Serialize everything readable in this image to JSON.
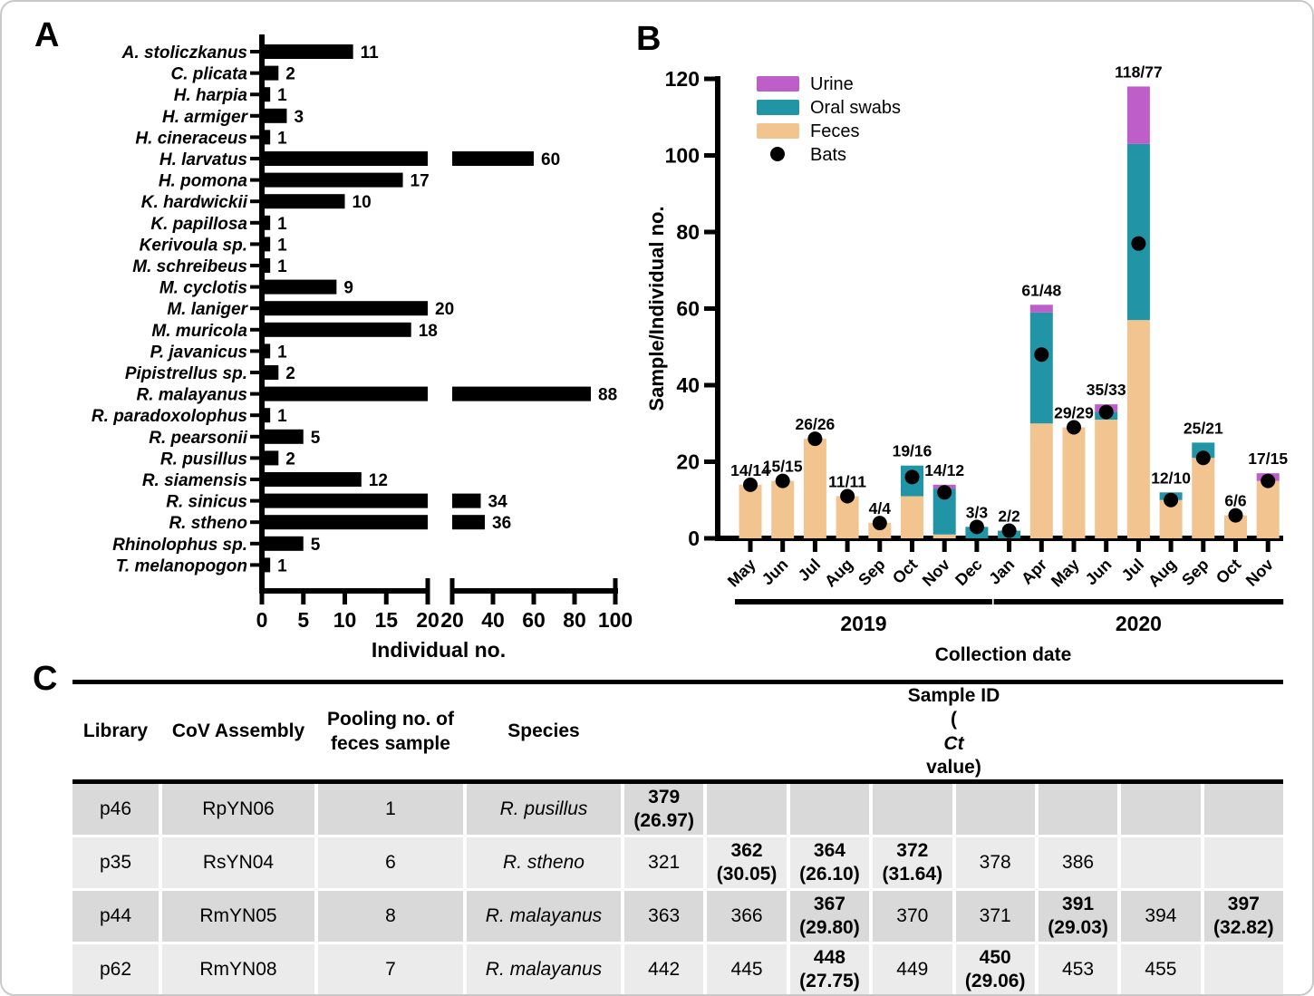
{
  "panels": {
    "a": "A",
    "b": "B",
    "c": "C"
  },
  "colors": {
    "bar": "#000000",
    "feces": "#f1c490",
    "oral_swabs": "#2194a6",
    "urine": "#bd5ec9",
    "bats": "#000000",
    "row_dark": "#d9d9d9",
    "row_light": "#ebebeb",
    "frame": "#c9c9c9"
  },
  "chart_data": [
    {
      "id": "panel-a",
      "type": "bar",
      "orientation": "horizontal",
      "title": "",
      "xlabel": "Individual no.",
      "categories": [
        "A. stoliczkanus",
        "C. plicata",
        "H. harpia",
        "H. armiger",
        "H. cineraceus",
        "H. larvatus",
        "H. pomona",
        "K. hardwickii",
        "K. papillosa",
        "Kerivoula sp.",
        "M. schreibeus",
        "M. cyclotis",
        "M. laniger",
        "M. muricola",
        "P. javanicus",
        "Pipistrellus sp.",
        "R. malayanus",
        "R. paradoxolophus",
        "R. pearsonii",
        "R. pusillus",
        "R. siamensis",
        "R. sinicus",
        "R. stheno",
        "Rhinolophus sp.",
        "T. melanopogon"
      ],
      "values": [
        11,
        2,
        1,
        3,
        1,
        60,
        17,
        10,
        1,
        1,
        1,
        9,
        20,
        18,
        1,
        2,
        88,
        1,
        5,
        2,
        12,
        34,
        36,
        5,
        1
      ],
      "axis_break": {
        "left_range": [
          0,
          20
        ],
        "right_range": [
          20,
          100
        ],
        "left_ticks": [
          0,
          5,
          10,
          15,
          20
        ],
        "right_ticks": [
          20,
          40,
          60,
          80,
          100
        ]
      },
      "bar_color": "#000000"
    },
    {
      "id": "panel-b",
      "type": "stacked-bar",
      "title": "",
      "xlabel": "Collection date",
      "ylabel": "Sample/Individual no.",
      "ylim": [
        0,
        120
      ],
      "yticks": [
        0,
        20,
        40,
        60,
        80,
        100,
        120
      ],
      "categories": [
        "May",
        "Jun",
        "Jul",
        "Aug",
        "Sep",
        "Oct",
        "Nov",
        "Dec",
        "Jan",
        "Apr",
        "May",
        "Jun",
        "Jul",
        "Aug",
        "Sep",
        "Oct",
        "Nov"
      ],
      "year_groups": [
        {
          "label": "2019",
          "from": 0,
          "to": 7
        },
        {
          "label": "2020",
          "from": 8,
          "to": 16
        }
      ],
      "series": [
        {
          "name": "Feces",
          "color": "#f1c490",
          "values": [
            14,
            15,
            26,
            11,
            4,
            11,
            1,
            0,
            0,
            30,
            29,
            31,
            57,
            10,
            21,
            6,
            15
          ]
        },
        {
          "name": "Oral swabs",
          "color": "#2194a6",
          "values": [
            0,
            0,
            0,
            0,
            0,
            8,
            12,
            3,
            2,
            29,
            0,
            2,
            46,
            2,
            4,
            0,
            0
          ]
        },
        {
          "name": "Urine",
          "color": "#bd5ec9",
          "values": [
            0,
            0,
            0,
            0,
            0,
            0,
            1,
            0,
            0,
            2,
            0,
            2,
            15,
            0,
            0,
            0,
            2
          ]
        }
      ],
      "points": {
        "name": "Bats",
        "color": "#000000",
        "values": [
          14,
          15,
          26,
          11,
          4,
          16,
          12,
          3,
          2,
          48,
          29,
          33,
          77,
          10,
          21,
          6,
          15
        ]
      },
      "bar_labels": [
        "14/14",
        "15/15",
        "26/26",
        "11/11",
        "4/4",
        "19/16",
        "14/12",
        "3/3",
        "2/2",
        "61/48",
        "29/29",
        "35/33",
        "118/77",
        "12/10",
        "25/21",
        "6/6",
        "17/15"
      ],
      "legend_order": [
        "Urine",
        "Oral swabs",
        "Feces",
        "Bats"
      ],
      "legend_position": "top-left-inside"
    },
    {
      "id": "panel-c",
      "type": "table",
      "headers": {
        "library": "Library",
        "assembly": "CoV Assembly",
        "pooling_line1": "Pooling no. of",
        "pooling_line2": "feces sample",
        "species": "Species",
        "sample_line1": "Sample ID",
        "sample_line2_pre": "(",
        "sample_line2_italic": "Ct",
        "sample_line2_post": " value)"
      },
      "rows": [
        {
          "library": "p46",
          "assembly": "RpYN06",
          "pooling": "1",
          "species": "R. pusillus",
          "samples": [
            "379|(26.97)",
            "",
            "",
            "",
            "",
            "",
            "",
            ""
          ]
        },
        {
          "library": "p35",
          "assembly": "RsYN04",
          "pooling": "6",
          "species": "R. stheno",
          "samples": [
            "321",
            "362|(30.05)",
            "364|(26.10)",
            "372|(31.64)",
            "378",
            "386",
            "",
            ""
          ]
        },
        {
          "library": "p44",
          "assembly": "RmYN05",
          "pooling": "8",
          "species": "R. malayanus",
          "samples": [
            "363",
            "366",
            "367|(29.80)",
            "370",
            "371",
            "391|(29.03)",
            "394",
            "397|(32.82)"
          ]
        },
        {
          "library": "p62",
          "assembly": "RmYN08",
          "pooling": "7",
          "species": "R. malayanus",
          "samples": [
            "442",
            "445",
            "448|(27.75)",
            "449",
            "450|(29.06)",
            "453",
            "455",
            ""
          ]
        }
      ]
    }
  ]
}
